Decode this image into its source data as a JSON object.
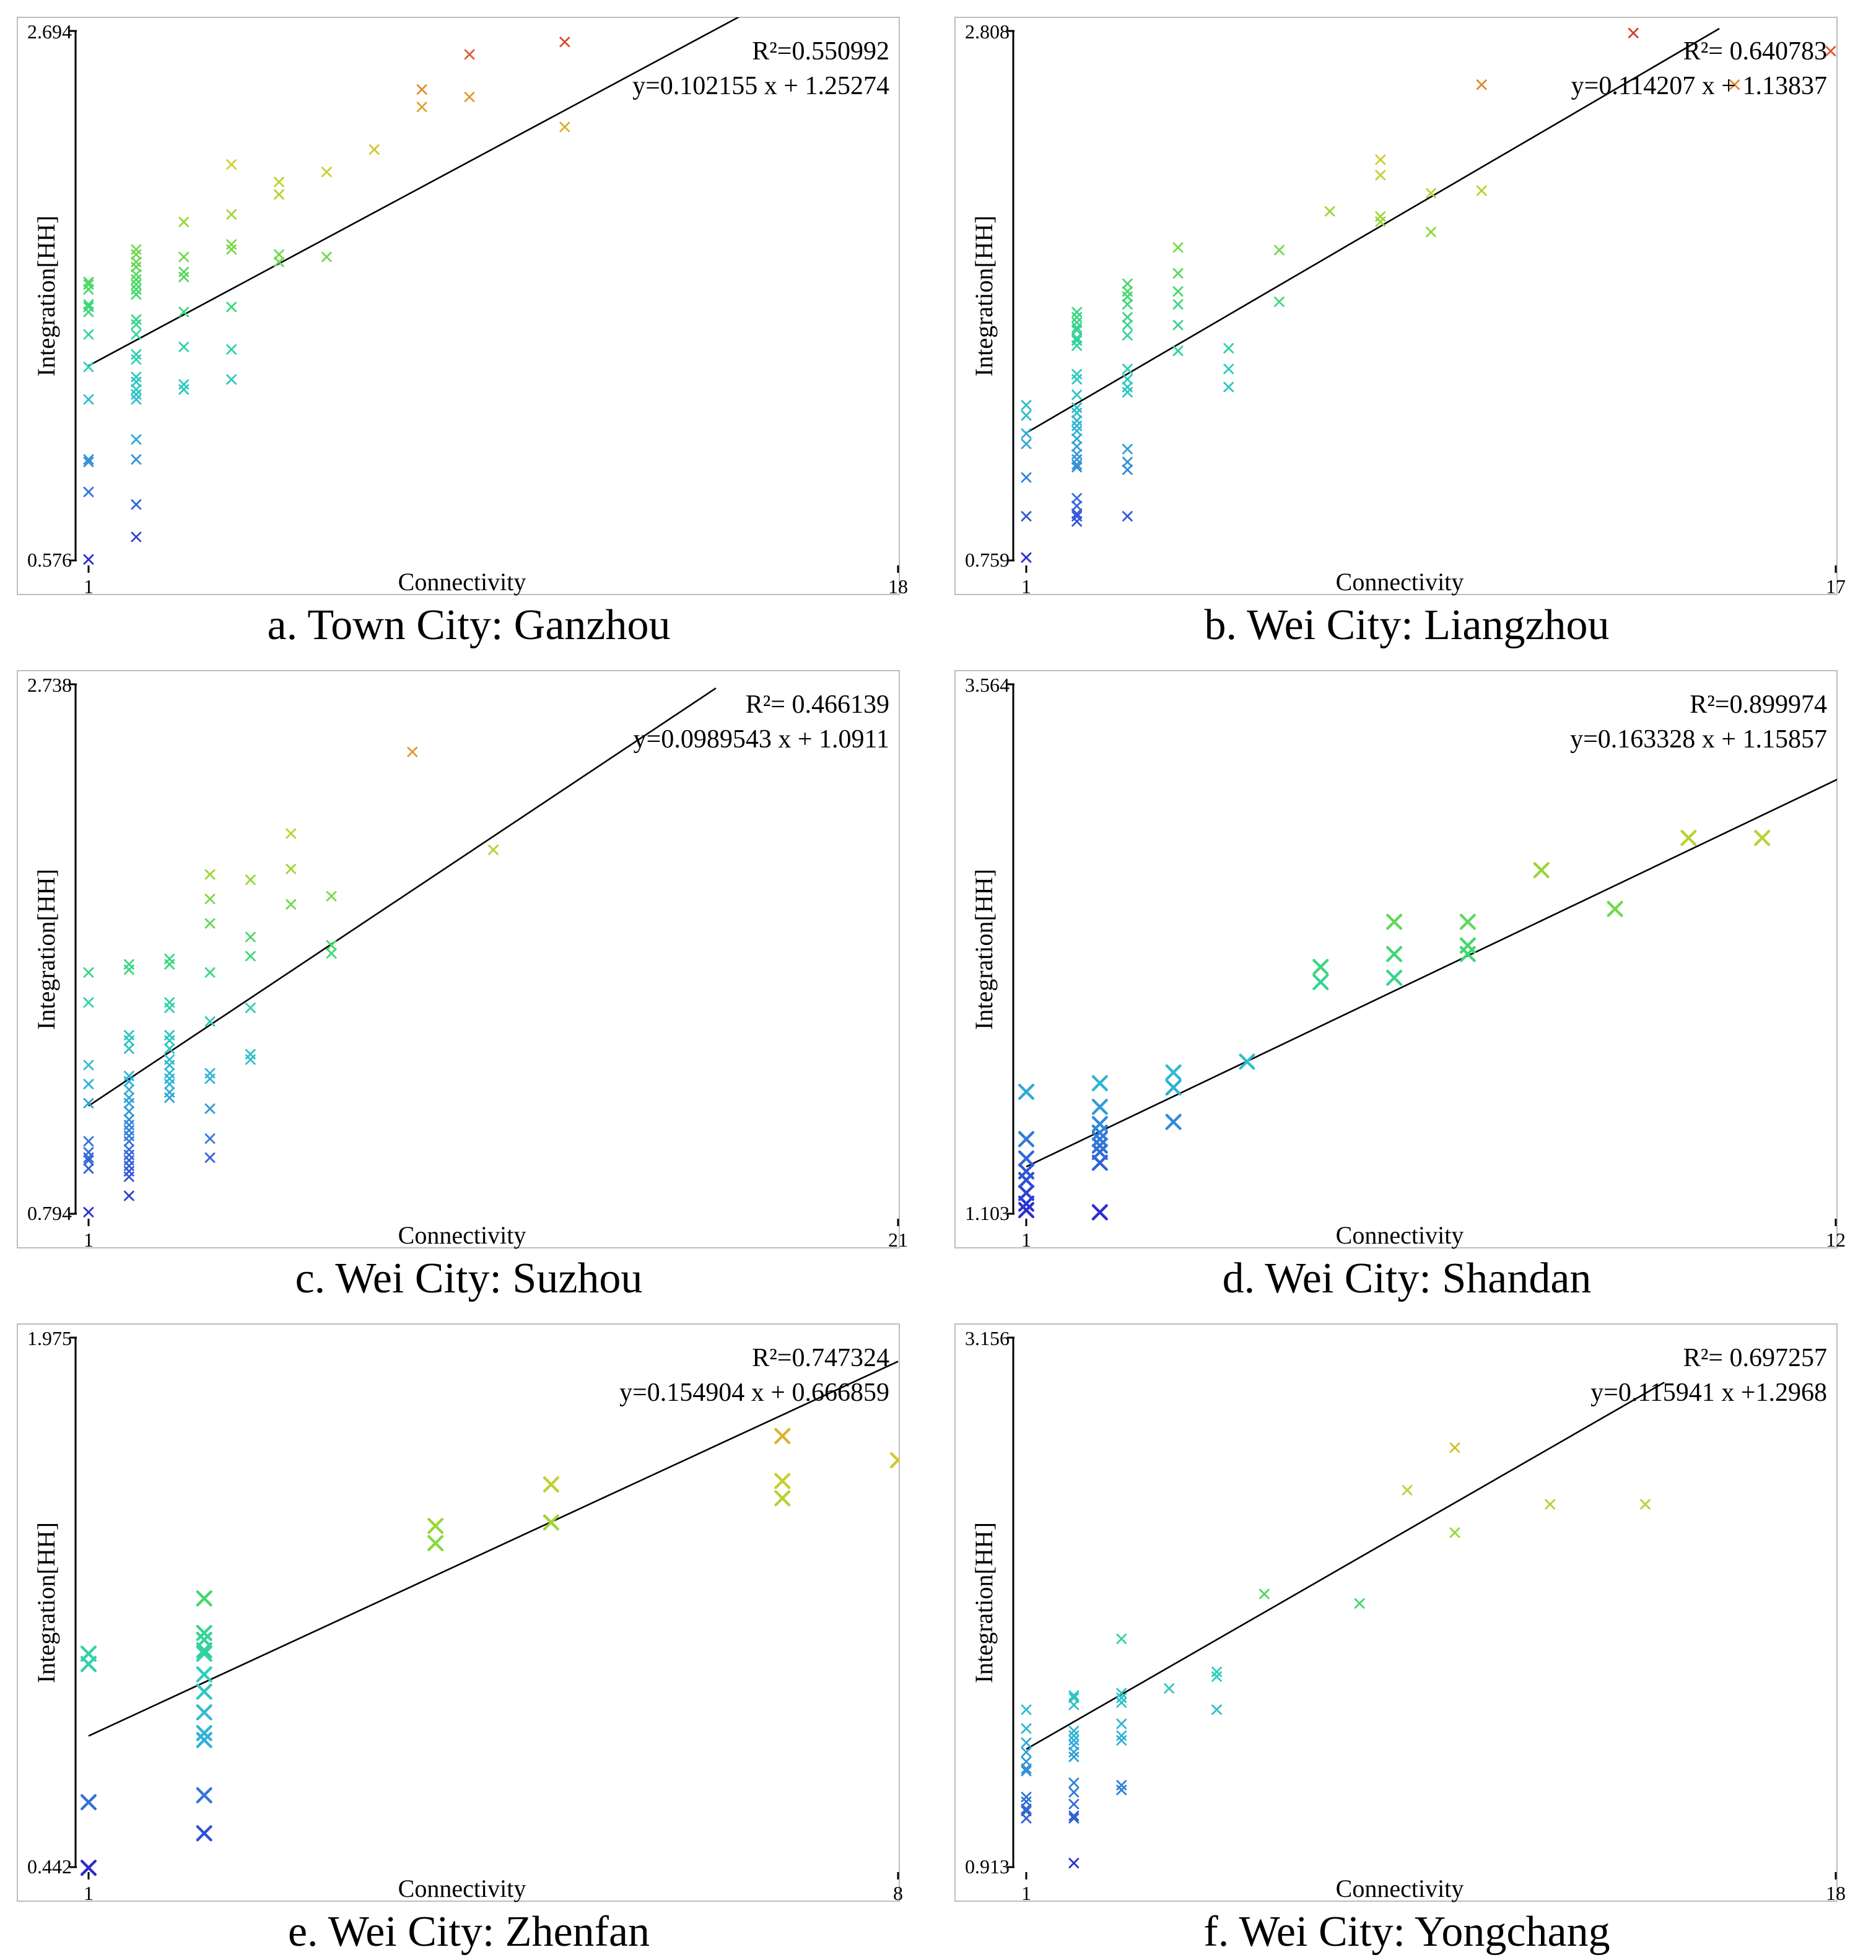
{
  "chart_data": [
    {
      "type": "scatter",
      "id": "a",
      "title": "a. Town City: Ganzhou",
      "xlabel": "Connectivity",
      "ylabel": "Integration[HH]",
      "xlim": [
        1,
        18
      ],
      "ylim": [
        0.576,
        2.694
      ],
      "x_tick_labels": [
        "1",
        "18"
      ],
      "y_tick_labels": [
        "0.576",
        "2.694"
      ],
      "r2_label": "R²=0.550992",
      "equation_label": "y=0.102155 x + 1.25274",
      "regression": {
        "slope": 0.102155,
        "intercept": 1.25274,
        "x_range": [
          1,
          14.8
        ]
      },
      "marker_scale": 1.0,
      "points": [
        [
          1,
          0.58
        ],
        [
          1,
          0.85
        ],
        [
          1,
          0.97
        ],
        [
          1,
          0.98
        ],
        [
          1,
          1.22
        ],
        [
          1,
          1.35
        ],
        [
          1,
          1.48
        ],
        [
          1,
          1.57
        ],
        [
          1,
          1.59
        ],
        [
          1,
          1.6
        ],
        [
          1,
          1.66
        ],
        [
          1,
          1.68
        ],
        [
          1,
          1.69
        ],
        [
          2,
          0.67
        ],
        [
          2,
          0.8
        ],
        [
          2,
          0.98
        ],
        [
          2,
          1.06
        ],
        [
          2,
          1.22
        ],
        [
          2,
          1.24
        ],
        [
          2,
          1.26
        ],
        [
          2,
          1.29
        ],
        [
          2,
          1.31
        ],
        [
          2,
          1.38
        ],
        [
          2,
          1.4
        ],
        [
          2,
          1.48
        ],
        [
          2,
          1.52
        ],
        [
          2,
          1.54
        ],
        [
          2,
          1.64
        ],
        [
          2,
          1.66
        ],
        [
          2,
          1.68
        ],
        [
          2,
          1.7
        ],
        [
          2,
          1.72
        ],
        [
          2,
          1.75
        ],
        [
          2,
          1.77
        ],
        [
          2,
          1.8
        ],
        [
          2,
          1.82
        ],
        [
          3,
          1.26
        ],
        [
          3,
          1.28
        ],
        [
          3,
          1.43
        ],
        [
          3,
          1.57
        ],
        [
          3,
          1.71
        ],
        [
          3,
          1.73
        ],
        [
          3,
          1.79
        ],
        [
          3,
          1.93
        ],
        [
          4,
          1.3
        ],
        [
          4,
          1.42
        ],
        [
          4,
          1.59
        ],
        [
          4,
          1.82
        ],
        [
          4,
          1.84
        ],
        [
          4,
          1.96
        ],
        [
          4,
          2.16
        ],
        [
          5,
          1.77
        ],
        [
          5,
          1.8
        ],
        [
          5,
          2.04
        ],
        [
          5,
          2.09
        ],
        [
          6,
          1.79
        ],
        [
          6,
          2.13
        ],
        [
          7,
          2.22
        ],
        [
          8,
          2.39
        ],
        [
          8,
          2.46
        ],
        [
          9,
          2.43
        ],
        [
          9,
          2.6
        ],
        [
          11,
          2.31
        ],
        [
          11,
          2.65
        ]
      ]
    },
    {
      "type": "scatter",
      "id": "b",
      "title": "b. Wei City: Liangzhou",
      "xlabel": "Connectivity",
      "ylabel": "Integration[HH]",
      "xlim": [
        1,
        17
      ],
      "ylim": [
        0.759,
        2.808
      ],
      "x_tick_labels": [
        "1",
        "17"
      ],
      "y_tick_labels": [
        "0.759",
        "2.808"
      ],
      "r2_label": "R²= 0.640783",
      "equation_label": "y=0.114207 x + 1.13837",
      "regression": {
        "slope": 0.114207,
        "intercept": 1.13837,
        "x_range": [
          1,
          14.7
        ]
      },
      "marker_scale": 1.0,
      "points": [
        [
          1,
          0.77
        ],
        [
          1,
          0.93
        ],
        [
          1,
          1.08
        ],
        [
          1,
          1.21
        ],
        [
          1,
          1.25
        ],
        [
          1,
          1.32
        ],
        [
          1,
          1.36
        ],
        [
          2,
          0.91
        ],
        [
          2,
          0.93
        ],
        [
          2,
          0.94
        ],
        [
          2,
          0.97
        ],
        [
          2,
          1.0
        ],
        [
          2,
          1.12
        ],
        [
          2,
          1.13
        ],
        [
          2,
          1.15
        ],
        [
          2,
          1.17
        ],
        [
          2,
          1.2
        ],
        [
          2,
          1.23
        ],
        [
          2,
          1.26
        ],
        [
          2,
          1.28
        ],
        [
          2,
          1.3
        ],
        [
          2,
          1.33
        ],
        [
          2,
          1.35
        ],
        [
          2,
          1.4
        ],
        [
          2,
          1.46
        ],
        [
          2,
          1.48
        ],
        [
          2,
          1.59
        ],
        [
          2,
          1.61
        ],
        [
          2,
          1.62
        ],
        [
          2,
          1.65
        ],
        [
          2,
          1.66
        ],
        [
          2,
          1.68
        ],
        [
          2,
          1.7
        ],
        [
          2,
          1.72
        ],
        [
          3,
          0.93
        ],
        [
          3,
          1.11
        ],
        [
          3,
          1.14
        ],
        [
          3,
          1.19
        ],
        [
          3,
          1.41
        ],
        [
          3,
          1.43
        ],
        [
          3,
          1.46
        ],
        [
          3,
          1.5
        ],
        [
          3,
          1.63
        ],
        [
          3,
          1.67
        ],
        [
          3,
          1.7
        ],
        [
          3,
          1.75
        ],
        [
          3,
          1.78
        ],
        [
          3,
          1.8
        ],
        [
          3,
          1.83
        ],
        [
          4,
          1.57
        ],
        [
          4,
          1.67
        ],
        [
          4,
          1.75
        ],
        [
          4,
          1.8
        ],
        [
          4,
          1.87
        ],
        [
          4,
          1.97
        ],
        [
          5,
          1.43
        ],
        [
          5,
          1.5
        ],
        [
          5,
          1.58
        ],
        [
          6,
          1.76
        ],
        [
          6,
          1.96
        ],
        [
          7,
          2.11
        ],
        [
          8,
          2.07
        ],
        [
          8,
          2.09
        ],
        [
          8,
          2.25
        ],
        [
          8,
          2.31
        ],
        [
          9,
          2.03
        ],
        [
          9,
          2.18
        ],
        [
          10,
          2.19
        ],
        [
          10,
          2.6
        ],
        [
          13,
          2.8
        ],
        [
          15,
          2.6
        ],
        [
          16.9,
          2.73
        ]
      ]
    },
    {
      "type": "scatter",
      "id": "c",
      "title": "c. Wei City: Suzhou",
      "xlabel": "Connectivity",
      "ylabel": "Integration[HH]",
      "xlim": [
        1,
        21
      ],
      "ylim": [
        0.794,
        2.738
      ],
      "x_tick_labels": [
        "1",
        "21"
      ],
      "y_tick_labels": [
        "0.794",
        "2.738"
      ],
      "r2_label": "R²= 0.466139",
      "equation_label": "y=0.0989543 x + 1.0911",
      "regression": {
        "slope": 0.0989543,
        "intercept": 1.0911,
        "x_range": [
          1,
          16.5
        ]
      },
      "marker_scale": 1.0,
      "points": [
        [
          1,
          0.8
        ],
        [
          1,
          0.96
        ],
        [
          1,
          0.99
        ],
        [
          1,
          1.0
        ],
        [
          1,
          1.02
        ],
        [
          1,
          1.06
        ],
        [
          1,
          1.2
        ],
        [
          1,
          1.27
        ],
        [
          1,
          1.34
        ],
        [
          1,
          1.57
        ],
        [
          1,
          1.68
        ],
        [
          2,
          0.86
        ],
        [
          2,
          0.93
        ],
        [
          2,
          0.95
        ],
        [
          2,
          0.97
        ],
        [
          2,
          0.99
        ],
        [
          2,
          1.01
        ],
        [
          2,
          1.03
        ],
        [
          2,
          1.06
        ],
        [
          2,
          1.08
        ],
        [
          2,
          1.1
        ],
        [
          2,
          1.12
        ],
        [
          2,
          1.14
        ],
        [
          2,
          1.17
        ],
        [
          2,
          1.2
        ],
        [
          2,
          1.22
        ],
        [
          2,
          1.25
        ],
        [
          2,
          1.28
        ],
        [
          2,
          1.3
        ],
        [
          2,
          1.4
        ],
        [
          2,
          1.43
        ],
        [
          2,
          1.45
        ],
        [
          2,
          1.69
        ],
        [
          2,
          1.71
        ],
        [
          3,
          1.22
        ],
        [
          3,
          1.24
        ],
        [
          3,
          1.27
        ],
        [
          3,
          1.29
        ],
        [
          3,
          1.31
        ],
        [
          3,
          1.34
        ],
        [
          3,
          1.36
        ],
        [
          3,
          1.4
        ],
        [
          3,
          1.43
        ],
        [
          3,
          1.45
        ],
        [
          3,
          1.55
        ],
        [
          3,
          1.57
        ],
        [
          3,
          1.71
        ],
        [
          3,
          1.73
        ],
        [
          4,
          1.0
        ],
        [
          4,
          1.07
        ],
        [
          4,
          1.18
        ],
        [
          4,
          1.29
        ],
        [
          4,
          1.31
        ],
        [
          4,
          1.5
        ],
        [
          4,
          1.68
        ],
        [
          4,
          1.86
        ],
        [
          4,
          1.95
        ],
        [
          4,
          2.04
        ],
        [
          5,
          1.36
        ],
        [
          5,
          1.38
        ],
        [
          5,
          1.55
        ],
        [
          5,
          1.74
        ],
        [
          5,
          1.81
        ],
        [
          5,
          2.02
        ],
        [
          6,
          1.93
        ],
        [
          6,
          2.06
        ],
        [
          6,
          2.19
        ],
        [
          7,
          1.75
        ],
        [
          7,
          1.78
        ],
        [
          7,
          1.96
        ],
        [
          9,
          2.49
        ],
        [
          11,
          2.13
        ]
      ]
    },
    {
      "type": "scatter",
      "id": "d",
      "title": "d. Wei City: Shandan",
      "xlabel": "Connectivity",
      "ylabel": "Integration[HH]",
      "xlim": [
        1,
        12
      ],
      "ylim": [
        1.103,
        3.564
      ],
      "x_tick_labels": [
        "1",
        "12"
      ],
      "y_tick_labels": [
        "1.103",
        "3.564"
      ],
      "r2_label": "R²=0.899974",
      "equation_label": "y=0.163328 x + 1.15857",
      "regression": {
        "slope": 0.163328,
        "intercept": 1.15857,
        "x_range": [
          1,
          12.4
        ]
      },
      "marker_scale": 1.55,
      "points": [
        [
          1,
          1.12
        ],
        [
          1,
          1.15
        ],
        [
          1,
          1.2
        ],
        [
          1,
          1.26
        ],
        [
          1,
          1.3
        ],
        [
          1,
          1.36
        ],
        [
          1,
          1.45
        ],
        [
          1,
          1.67
        ],
        [
          2,
          1.11
        ],
        [
          2,
          1.34
        ],
        [
          2,
          1.39
        ],
        [
          2,
          1.42
        ],
        [
          2,
          1.45
        ],
        [
          2,
          1.48
        ],
        [
          2,
          1.52
        ],
        [
          2,
          1.6
        ],
        [
          2,
          1.71
        ],
        [
          3,
          1.53
        ],
        [
          3,
          1.69
        ],
        [
          3,
          1.76
        ],
        [
          4,
          1.81
        ],
        [
          5,
          2.18
        ],
        [
          5,
          2.25
        ],
        [
          6,
          2.2
        ],
        [
          6,
          2.31
        ],
        [
          6,
          2.46
        ],
        [
          7,
          2.31
        ],
        [
          7,
          2.35
        ],
        [
          7,
          2.46
        ],
        [
          8,
          2.7
        ],
        [
          9,
          2.52
        ],
        [
          10,
          2.85
        ],
        [
          11,
          2.85
        ]
      ]
    },
    {
      "type": "scatter",
      "id": "e",
      "title": "e. Wei City: Zhenfan",
      "xlabel": "Connectivity",
      "ylabel": "Integration[HH]",
      "xlim": [
        1,
        8
      ],
      "ylim": [
        0.442,
        1.975
      ],
      "x_tick_labels": [
        "1",
        "8"
      ],
      "y_tick_labels": [
        "0.442",
        "1.975"
      ],
      "r2_label": "R²=0.747324",
      "equation_label": "y=0.154904 x + 0.666859",
      "regression": {
        "slope": 0.154904,
        "intercept": 0.666859,
        "x_range": [
          1,
          8.0
        ]
      },
      "marker_scale": 1.55,
      "points": [
        [
          1,
          0.44
        ],
        [
          1,
          0.63
        ],
        [
          1,
          1.03
        ],
        [
          1,
          1.06
        ],
        [
          2,
          0.54
        ],
        [
          2,
          0.65
        ],
        [
          2,
          0.81
        ],
        [
          2,
          0.83
        ],
        [
          2,
          0.89
        ],
        [
          2,
          0.95
        ],
        [
          2,
          1.0
        ],
        [
          2,
          1.06
        ],
        [
          2,
          1.07
        ],
        [
          2,
          1.1
        ],
        [
          2,
          1.12
        ],
        [
          2,
          1.22
        ],
        [
          4,
          1.38
        ],
        [
          4,
          1.43
        ],
        [
          5,
          1.44
        ],
        [
          5,
          1.55
        ],
        [
          7,
          1.51
        ],
        [
          7,
          1.56
        ],
        [
          7,
          1.69
        ],
        [
          8,
          1.62
        ]
      ]
    },
    {
      "type": "scatter",
      "id": "f",
      "title": "f. Wei City: Yongchang",
      "xlabel": "Connectivity",
      "ylabel": "Integration[HH]",
      "xlim": [
        1,
        18
      ],
      "ylim": [
        0.913,
        3.156
      ],
      "x_tick_labels": [
        "1",
        "18"
      ],
      "y_tick_labels": [
        "0.913",
        "3.156"
      ],
      "r2_label": "R²= 0.697257",
      "equation_label": "y=0.115941 x +1.2968",
      "regression": {
        "slope": 0.115941,
        "intercept": 1.2968,
        "x_range": [
          1,
          14.4
        ]
      },
      "marker_scale": 1.0,
      "points": [
        [
          1,
          1.12
        ],
        [
          1,
          1.15
        ],
        [
          1,
          1.16
        ],
        [
          1,
          1.19
        ],
        [
          1,
          1.21
        ],
        [
          1,
          1.32
        ],
        [
          1,
          1.33
        ],
        [
          1,
          1.36
        ],
        [
          1,
          1.4
        ],
        [
          1,
          1.44
        ],
        [
          1,
          1.5
        ],
        [
          1,
          1.58
        ],
        [
          2,
          0.93
        ],
        [
          2,
          1.12
        ],
        [
          2,
          1.13
        ],
        [
          2,
          1.18
        ],
        [
          2,
          1.23
        ],
        [
          2,
          1.27
        ],
        [
          2,
          1.38
        ],
        [
          2,
          1.4
        ],
        [
          2,
          1.43
        ],
        [
          2,
          1.45
        ],
        [
          2,
          1.47
        ],
        [
          2,
          1.49
        ],
        [
          2,
          1.6
        ],
        [
          2,
          1.63
        ],
        [
          2,
          1.64
        ],
        [
          3,
          1.24
        ],
        [
          3,
          1.26
        ],
        [
          3,
          1.45
        ],
        [
          3,
          1.47
        ],
        [
          3,
          1.52
        ],
        [
          3,
          1.61
        ],
        [
          3,
          1.63
        ],
        [
          3,
          1.65
        ],
        [
          3,
          1.88
        ],
        [
          4,
          1.67
        ],
        [
          5,
          1.58
        ],
        [
          5,
          1.72
        ],
        [
          5,
          1.74
        ],
        [
          6,
          2.07
        ],
        [
          8,
          2.03
        ],
        [
          9,
          2.51
        ],
        [
          10,
          2.33
        ],
        [
          10,
          2.69
        ],
        [
          12,
          2.45
        ],
        [
          14,
          2.45
        ]
      ]
    }
  ],
  "colormap": [
    "#2b2bd0",
    "#3370d8",
    "#2fb4d6",
    "#2ecfb6",
    "#3fd870",
    "#8fd837",
    "#cfcf2f",
    "#e39a2f",
    "#d83c2f"
  ]
}
